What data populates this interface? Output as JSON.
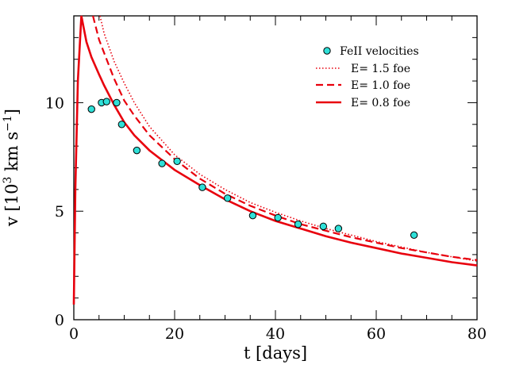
{
  "chart_data": {
    "type": "line",
    "xlabel": "t [days]",
    "ylabel_main": "v [10",
    "ylabel_sup": "3",
    "ylabel_tail": " km s",
    "ylabel_unit_sup": "−1",
    "ylabel_close": "]",
    "xlim": [
      0,
      80
    ],
    "ylim": [
      0,
      14
    ],
    "x_ticks": [
      0,
      20,
      40,
      60,
      80
    ],
    "x_tick_labels": [
      "0",
      "20",
      "40",
      "60",
      "80"
    ],
    "y_ticks": [
      0,
      5,
      10
    ],
    "y_tick_labels": [
      "0",
      "5",
      "10"
    ],
    "grid": false,
    "legend_position": "top-right",
    "accent_color": "#e8000d",
    "marker_color": "#2fe0d8",
    "points_series": {
      "name": "FeII velocities",
      "x": [
        3.5,
        5.5,
        6.5,
        8.5,
        9.5,
        12.5,
        17.5,
        20.5,
        25.5,
        30.5,
        35.5,
        40.5,
        44.5,
        49.5,
        52.5,
        67.5
      ],
      "y": [
        9.7,
        10.0,
        10.05,
        10.0,
        9.0,
        7.8,
        7.2,
        7.3,
        6.1,
        5.6,
        4.8,
        4.7,
        4.4,
        4.3,
        4.2,
        3.9
      ]
    },
    "series": [
      {
        "name": "E= 1.5 foe",
        "style": "dotted",
        "x": [
          5.2,
          6,
          8,
          10,
          12,
          15,
          20,
          25,
          30,
          35,
          40,
          45,
          50,
          55,
          60,
          65,
          70,
          75,
          80
        ],
        "y": [
          14,
          13.2,
          11.9,
          10.9,
          10.0,
          8.9,
          7.6,
          6.7,
          6.0,
          5.4,
          4.95,
          4.55,
          4.2,
          3.9,
          3.6,
          3.35,
          3.1,
          2.9,
          2.7
        ]
      },
      {
        "name": "E= 1.0 foe",
        "style": "dashed",
        "x": [
          3.8,
          5,
          6,
          8,
          10,
          12,
          15,
          20,
          25,
          30,
          35,
          40,
          45,
          50,
          55,
          60,
          65,
          70,
          75,
          80
        ],
        "y": [
          14,
          12.9,
          12.3,
          11.1,
          10.1,
          9.4,
          8.5,
          7.4,
          6.5,
          5.8,
          5.25,
          4.8,
          4.4,
          4.1,
          3.8,
          3.55,
          3.3,
          3.1,
          2.9,
          2.75
        ]
      },
      {
        "name": "E= 0.8 foe",
        "style": "solid",
        "x": [
          0,
          0.3,
          0.8,
          1.5,
          2.5,
          3.5,
          5,
          6,
          8,
          10,
          12,
          15,
          20,
          25,
          30,
          35,
          40,
          45,
          50,
          55,
          60,
          65,
          70,
          75,
          80
        ],
        "y": [
          0.7,
          6,
          11,
          14,
          12.8,
          12.1,
          11.3,
          10.8,
          9.9,
          9.1,
          8.5,
          7.8,
          6.9,
          6.2,
          5.55,
          5.0,
          4.55,
          4.2,
          3.85,
          3.55,
          3.3,
          3.05,
          2.85,
          2.65,
          2.5
        ]
      }
    ]
  }
}
